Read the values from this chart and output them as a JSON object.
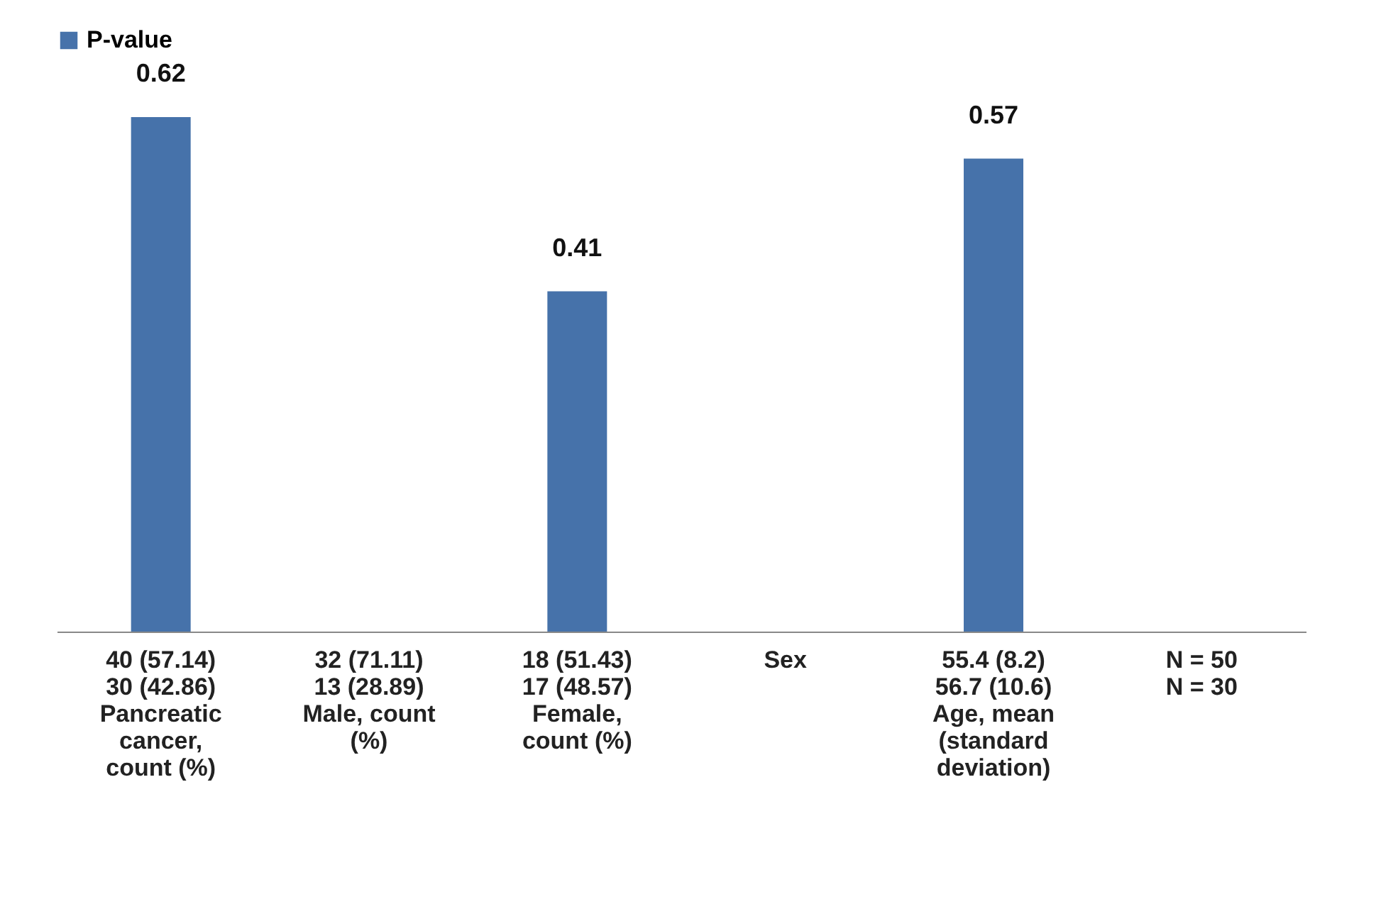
{
  "chart_data": {
    "type": "bar",
    "categories": [
      "40 (57.14)\n30 (42.86)\nPancreatic\ncancer,\ncount (%)",
      "32 (71.11)\n13 (28.89)\nMale, count\n(%)",
      "18 (51.43)\n17 (48.57)\nFemale,\ncount (%)",
      "Sex",
      "55.4 (8.2)\n56.7 (10.6)\nAge, mean\n(standard\ndeviation)",
      "N = 50\nN = 30"
    ],
    "series": [
      {
        "name": "P-value",
        "color": "#4672aa",
        "values": [
          0.62,
          null,
          0.41,
          null,
          0.57,
          null
        ]
      }
    ],
    "data_labels": true,
    "legend": "top",
    "grid": false
  }
}
